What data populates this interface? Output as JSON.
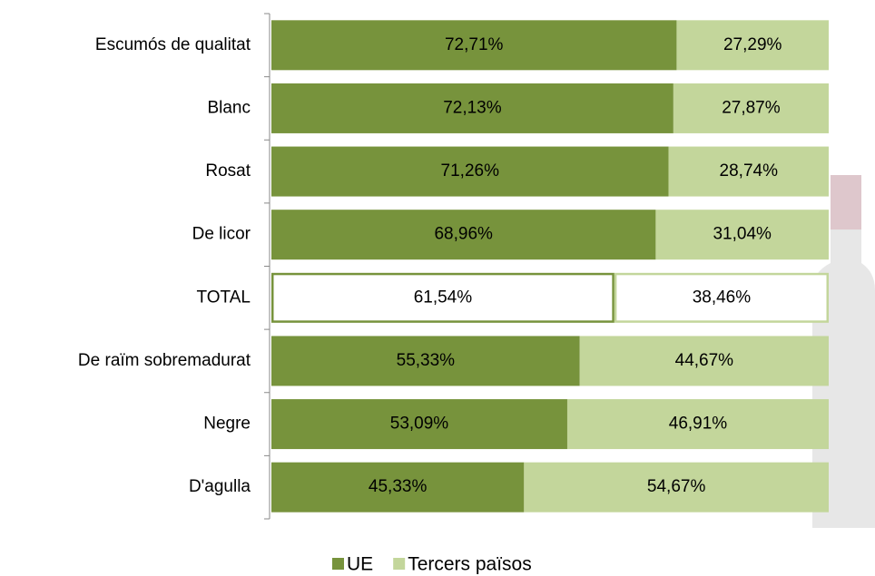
{
  "chart_data": {
    "type": "stacked-bar-horizontal",
    "categories": [
      "Escumós de qualitat",
      "Blanc",
      "Rosat",
      "De licor",
      "TOTAL",
      "De raïm sobremadurat",
      "Negre",
      "D'agulla"
    ],
    "series": [
      {
        "name": "UE",
        "color": "#77933c",
        "values": [
          72.71,
          72.13,
          71.26,
          68.96,
          61.54,
          55.33,
          53.09,
          45.33
        ],
        "value_labels": [
          "72,71%",
          "72,13%",
          "71,26%",
          "68,96%",
          "61,54%",
          "55,33%",
          "53,09%",
          "45,33%"
        ]
      },
      {
        "name": "Tercers països",
        "color": "#c3d69b",
        "values": [
          27.29,
          27.87,
          28.74,
          31.04,
          38.46,
          44.67,
          46.91,
          54.67
        ],
        "value_labels": [
          "27,29%",
          "27,87%",
          "28,74%",
          "31,04%",
          "38,46%",
          "44,67%",
          "46,91%",
          "54,67%"
        ]
      }
    ],
    "xlim": [
      0,
      100
    ],
    "outlined": {
      "index": 4,
      "fill": "#ffffff"
    },
    "legend": "bottom"
  }
}
